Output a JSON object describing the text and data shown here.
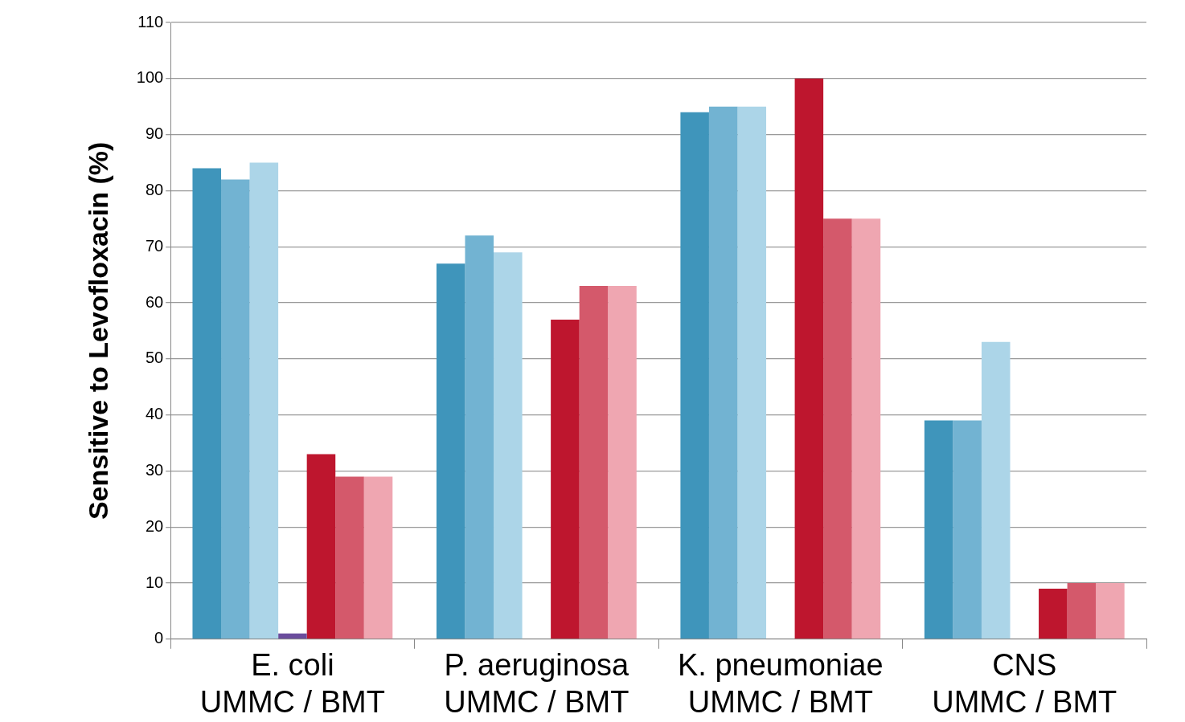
{
  "chart_data": {
    "type": "bar",
    "ylabel": "Sensitive to Levofloxacin (%)",
    "categories": [
      "E. coli\nUMMC / BMT",
      "P. aeruginosa\nUMMC / BMT",
      "K. pneumoniae\nUMMC / BMT",
      "CNS\nUMMC / BMT"
    ],
    "series": [
      {
        "color": "#3f95bb",
        "values": [
          84,
          67,
          94,
          39
        ]
      },
      {
        "color": "#72b3d2",
        "values": [
          82,
          72,
          95,
          39
        ]
      },
      {
        "color": "#acd5e8",
        "values": [
          85,
          69,
          95,
          53
        ]
      },
      {
        "color": "#6a4c9c",
        "values": [
          1,
          null,
          null,
          null
        ]
      },
      {
        "color": "#be162e",
        "values": [
          33,
          57,
          100,
          9
        ]
      },
      {
        "color": "#d4596b",
        "values": [
          29,
          63,
          75,
          10
        ]
      },
      {
        "color": "#efa6b1",
        "values": [
          29,
          63,
          75,
          10
        ]
      }
    ],
    "ylim": [
      0,
      110
    ],
    "yticks": [
      0,
      10,
      20,
      30,
      40,
      50,
      60,
      70,
      80,
      90,
      100,
      110
    ],
    "grid": "y",
    "legend": false
  }
}
